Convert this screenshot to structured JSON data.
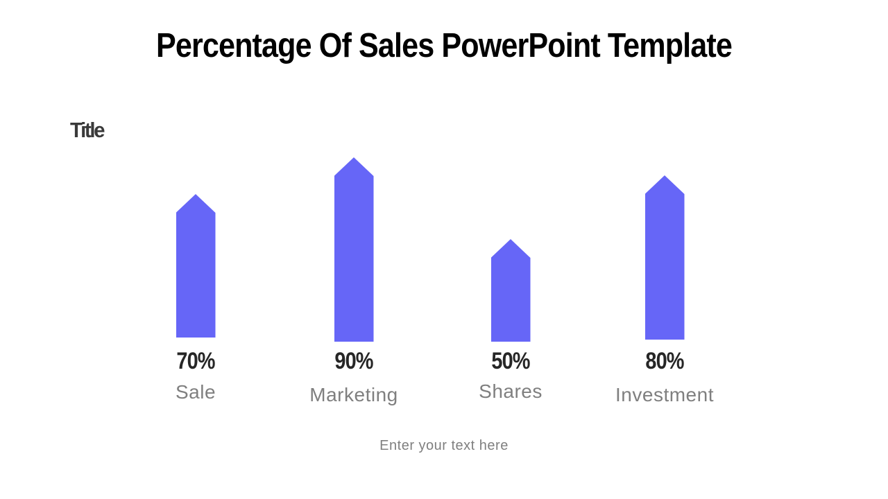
{
  "slide": {
    "title": "Percentage Of Sales PowerPoint Template",
    "section_label": "Title",
    "footer_placeholder": "Enter your text here"
  },
  "colors": {
    "background": "#ffffff",
    "title_text": "#000000",
    "section_label_text": "#3a3a3a",
    "value_label_text": "#262626",
    "category_label_text": "#7f7f7f",
    "bar_fill": "#6666f7"
  },
  "chart_data": {
    "type": "bar",
    "title": "Percentage Of Sales PowerPoint Template",
    "categories": [
      "Sale",
      "Marketing",
      "Shares",
      "Investment"
    ],
    "values": [
      70,
      90,
      50,
      80
    ],
    "value_labels": [
      "70%",
      "90%",
      "50%",
      "80%"
    ],
    "bar_shape": "upward-arrow",
    "bar_color": "#6666f7",
    "xlabel": "",
    "ylabel": "",
    "ylim": [
      0,
      100
    ],
    "grid": false,
    "legend": false,
    "axes_visible": false,
    "annotation": "Enter your text here"
  }
}
